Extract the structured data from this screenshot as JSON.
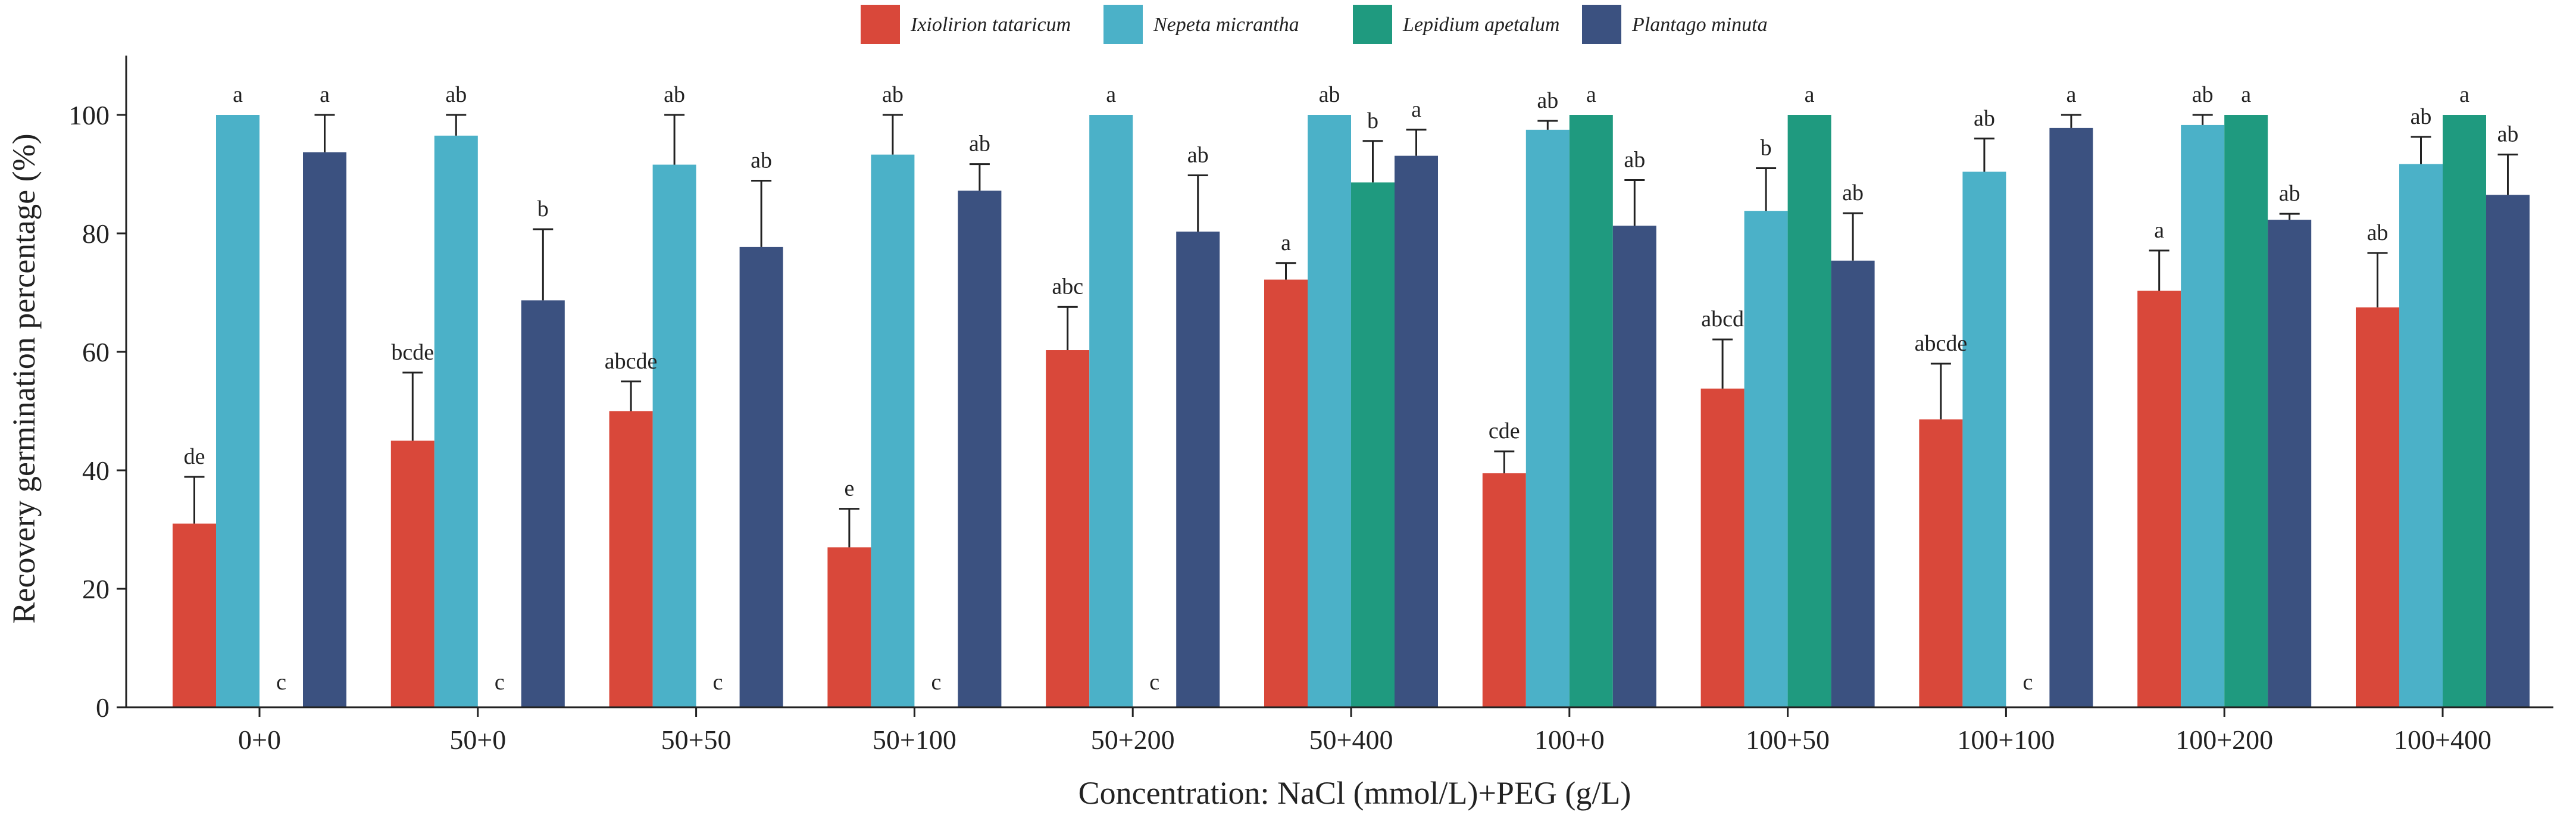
{
  "chart_data": {
    "type": "bar",
    "title": "",
    "xlabel": "Concentration: NaCl (mmol/L)+PEG (g/L)",
    "ylabel": "Recovery germination percentage (%)",
    "ylim": [
      0,
      110
    ],
    "yticks": [
      0,
      20,
      40,
      60,
      80,
      100
    ],
    "ytick_labels": [
      "0",
      "20",
      "40",
      "60",
      "80",
      "100"
    ],
    "legend_position": "top-center",
    "categories": [
      "0+0",
      "50+0",
      "50+50",
      "50+100",
      "50+200",
      "50+400",
      "100+0",
      "100+50",
      "100+100",
      "100+200",
      "100+400"
    ],
    "series": [
      {
        "name": "Ixiolirion tataricum",
        "color": "#d9483a",
        "values": [
          31,
          45,
          50,
          27,
          60.3,
          72.2,
          39.5,
          53.8,
          48.6,
          70.3,
          67.5
        ],
        "errors": [
          7.9,
          11.5,
          5,
          6.5,
          7.3,
          2.8,
          3.7,
          8.3,
          9.4,
          6.8,
          9.2
        ],
        "labels": [
          "de",
          "bcde",
          "abcde",
          "e",
          "abc",
          "a",
          "cde",
          "abcd",
          "abcde",
          "a",
          "ab"
        ]
      },
      {
        "name": "Nepeta micrantha",
        "color": "#4bb1c8",
        "values": [
          100,
          96.5,
          91.6,
          93.3,
          100,
          100,
          97.5,
          83.8,
          90.4,
          98.3,
          91.7
        ],
        "errors": [
          0,
          3.5,
          8.4,
          6.7,
          0,
          0,
          1.5,
          7.2,
          5.6,
          1.7,
          4.6
        ],
        "labels": [
          "a",
          "ab",
          "ab",
          "ab",
          "a",
          "ab",
          "ab",
          "b",
          "ab",
          "ab",
          "ab"
        ]
      },
      {
        "name": "Lepidium apetalum",
        "color": "#1f9a7f",
        "values": [
          0,
          0,
          0,
          0,
          0,
          88.6,
          100,
          100,
          0,
          100,
          100
        ],
        "errors": [
          0,
          0,
          0,
          0,
          0,
          7,
          0,
          0,
          0,
          0,
          0
        ],
        "labels": [
          "c",
          "c",
          "c",
          "c",
          "c",
          "b",
          "a",
          "a",
          "c",
          "a",
          "a"
        ]
      },
      {
        "name": "Plantago minuta",
        "color": "#3b5180",
        "values": [
          93.7,
          68.7,
          77.7,
          87.2,
          80.3,
          93.1,
          81.3,
          75.4,
          97.8,
          82.3,
          86.5
        ],
        "errors": [
          6.3,
          12,
          11.2,
          4.5,
          9.5,
          4.4,
          7.7,
          8,
          2.2,
          1,
          6.8
        ],
        "labels": [
          "a",
          "b",
          "ab",
          "ab",
          "ab",
          "a",
          "ab",
          "ab",
          "a",
          "ab",
          "ab"
        ]
      }
    ]
  }
}
